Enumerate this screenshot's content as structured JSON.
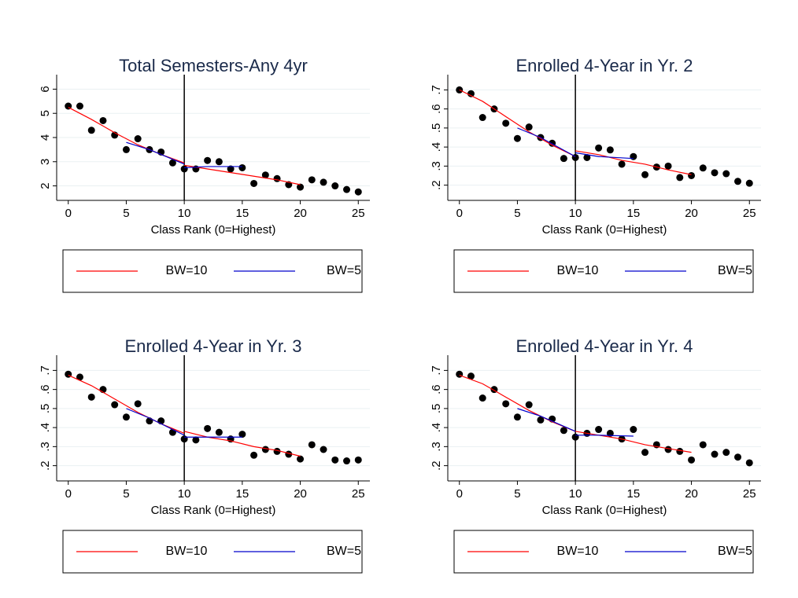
{
  "chart_data": [
    {
      "type": "scatter",
      "title": "Total Semesters-Any 4yr",
      "x_label": "Class Rank (0=Highest)",
      "x": [
        0,
        1,
        2,
        3,
        4,
        5,
        6,
        7,
        8,
        9,
        10,
        11,
        12,
        13,
        14,
        15,
        16,
        17,
        18,
        19,
        20,
        21,
        22,
        23,
        24,
        25
      ],
      "values": [
        5.3,
        5.3,
        4.3,
        4.7,
        4.1,
        3.5,
        3.95,
        3.5,
        3.4,
        2.95,
        2.7,
        2.7,
        3.05,
        3.0,
        2.7,
        2.75,
        2.1,
        2.45,
        2.3,
        2.05,
        1.95,
        2.25,
        2.15,
        2.0,
        1.85,
        1.75
      ],
      "color": "#000000",
      "series": [
        {
          "name": "BW=10",
          "color": "#ff0000",
          "x": [
            0,
            2,
            4,
            6,
            8,
            10,
            10,
            10,
            12,
            14,
            16,
            18,
            20
          ],
          "values": [
            5.25,
            4.75,
            4.2,
            3.7,
            3.3,
            2.95,
            null,
            2.85,
            2.7,
            2.55,
            2.4,
            2.25,
            2.05
          ]
        },
        {
          "name": "BW=5",
          "color": "#0000cc",
          "x": [
            5,
            7,
            10,
            10,
            10,
            12,
            15
          ],
          "values": [
            3.8,
            3.5,
            2.9,
            null,
            2.75,
            2.8,
            2.8
          ]
        }
      ],
      "xline": 10,
      "xlim": [
        -1,
        26
      ],
      "ylim": [
        1.4,
        6.6
      ],
      "xticks": [
        0,
        5,
        10,
        15,
        20,
        25
      ],
      "yticks": [
        2,
        3,
        4,
        5,
        6
      ],
      "grid": true
    },
    {
      "type": "scatter",
      "title": "Enrolled 4-Year in Yr. 2",
      "x_label": "Class Rank (0=Highest)",
      "x": [
        0,
        1,
        2,
        3,
        4,
        5,
        6,
        7,
        8,
        9,
        10,
        11,
        12,
        13,
        14,
        15,
        16,
        17,
        18,
        19,
        20,
        21,
        22,
        23,
        24,
        25
      ],
      "values": [
        0.7,
        0.68,
        0.555,
        0.6,
        0.525,
        0.445,
        0.505,
        0.45,
        0.42,
        0.34,
        0.345,
        0.345,
        0.395,
        0.385,
        0.31,
        0.35,
        0.255,
        0.295,
        0.3,
        0.24,
        0.25,
        0.29,
        0.265,
        0.26,
        0.22,
        0.21
      ],
      "color": "#000000",
      "series": [
        {
          "name": "BW=10",
          "color": "#ff0000",
          "x": [
            0,
            2,
            4,
            6,
            8,
            10,
            10,
            10,
            12,
            14,
            16,
            18,
            20
          ],
          "values": [
            0.7,
            0.64,
            0.56,
            0.48,
            0.41,
            0.35,
            null,
            0.38,
            0.36,
            0.33,
            0.31,
            0.28,
            0.255
          ]
        },
        {
          "name": "BW=5",
          "color": "#0000cc",
          "x": [
            5,
            7,
            10,
            10,
            10,
            12,
            15
          ],
          "values": [
            0.5,
            0.45,
            0.35,
            null,
            0.37,
            0.35,
            0.34
          ]
        }
      ],
      "xline": 10,
      "xlim": [
        -1,
        26
      ],
      "ylim": [
        0.12,
        0.78
      ],
      "xticks": [
        0,
        5,
        10,
        15,
        20,
        25
      ],
      "yticks": [
        {
          "value": 0.2,
          "label": ".2"
        },
        {
          "value": 0.3,
          "label": ".3"
        },
        {
          "value": 0.4,
          "label": ".4"
        },
        {
          "value": 0.5,
          "label": ".5"
        },
        {
          "value": 0.6,
          "label": ".6"
        },
        {
          "value": 0.7,
          "label": ".7"
        }
      ],
      "grid": true
    },
    {
      "type": "scatter",
      "title": "Enrolled 4-Year in Yr. 3",
      "x_label": "Class Rank (0=Highest)",
      "x": [
        0,
        1,
        2,
        3,
        4,
        5,
        6,
        7,
        8,
        9,
        10,
        11,
        12,
        13,
        14,
        15,
        16,
        17,
        18,
        19,
        20,
        21,
        22,
        23,
        24,
        25
      ],
      "values": [
        0.68,
        0.665,
        0.56,
        0.6,
        0.52,
        0.455,
        0.525,
        0.435,
        0.435,
        0.375,
        0.34,
        0.335,
        0.395,
        0.375,
        0.34,
        0.365,
        0.255,
        0.285,
        0.275,
        0.26,
        0.235,
        0.31,
        0.285,
        0.23,
        0.225,
        0.23
      ],
      "color": "#000000",
      "series": [
        {
          "name": "BW=10",
          "color": "#ff0000",
          "x": [
            0,
            2,
            4,
            6,
            8,
            10,
            10,
            10,
            12,
            14,
            16,
            18,
            20
          ],
          "values": [
            0.675,
            0.62,
            0.55,
            0.48,
            0.42,
            0.37,
            null,
            0.38,
            0.35,
            0.33,
            0.3,
            0.28,
            0.25
          ]
        },
        {
          "name": "BW=5",
          "color": "#0000cc",
          "x": [
            5,
            7,
            10,
            10,
            10,
            12,
            15
          ],
          "values": [
            0.5,
            0.45,
            0.36,
            null,
            0.35,
            0.35,
            0.35
          ]
        }
      ],
      "xline": 10,
      "xlim": [
        -1,
        26
      ],
      "ylim": [
        0.12,
        0.78
      ],
      "xticks": [
        0,
        5,
        10,
        15,
        20,
        25
      ],
      "yticks": [
        {
          "value": 0.2,
          "label": ".2"
        },
        {
          "value": 0.3,
          "label": ".3"
        },
        {
          "value": 0.4,
          "label": ".4"
        },
        {
          "value": 0.5,
          "label": ".5"
        },
        {
          "value": 0.6,
          "label": ".6"
        },
        {
          "value": 0.7,
          "label": ".7"
        }
      ],
      "grid": true
    },
    {
      "type": "scatter",
      "title": "Enrolled 4-Year in Yr. 4",
      "x_label": "Class Rank (0=Highest)",
      "x": [
        0,
        1,
        2,
        3,
        4,
        5,
        6,
        7,
        8,
        9,
        10,
        11,
        12,
        13,
        14,
        15,
        16,
        17,
        18,
        19,
        20,
        21,
        22,
        23,
        24,
        25
      ],
      "values": [
        0.68,
        0.67,
        0.555,
        0.6,
        0.525,
        0.455,
        0.52,
        0.44,
        0.445,
        0.385,
        0.35,
        0.37,
        0.39,
        0.37,
        0.34,
        0.39,
        0.27,
        0.31,
        0.285,
        0.275,
        0.23,
        0.31,
        0.26,
        0.27,
        0.245,
        0.215
      ],
      "color": "#000000",
      "series": [
        {
          "name": "BW=10",
          "color": "#ff0000",
          "x": [
            0,
            2,
            4,
            6,
            8,
            10,
            10,
            10,
            12,
            14,
            16,
            18,
            20
          ],
          "values": [
            0.675,
            0.63,
            0.56,
            0.49,
            0.43,
            0.38,
            null,
            0.38,
            0.36,
            0.34,
            0.31,
            0.29,
            0.27
          ]
        },
        {
          "name": "BW=5",
          "color": "#0000cc",
          "x": [
            5,
            7,
            10,
            10,
            10,
            12,
            15
          ],
          "values": [
            0.5,
            0.46,
            0.38,
            null,
            0.36,
            0.36,
            0.355
          ]
        }
      ],
      "xline": 10,
      "xlim": [
        -1,
        26
      ],
      "ylim": [
        0.12,
        0.78
      ],
      "xticks": [
        0,
        5,
        10,
        15,
        20,
        25
      ],
      "yticks": [
        {
          "value": 0.2,
          "label": ".2"
        },
        {
          "value": 0.3,
          "label": ".3"
        },
        {
          "value": 0.4,
          "label": ".4"
        },
        {
          "value": 0.5,
          "label": ".5"
        },
        {
          "value": 0.6,
          "label": ".6"
        },
        {
          "value": 0.7,
          "label": ".7"
        }
      ],
      "grid": true
    }
  ]
}
